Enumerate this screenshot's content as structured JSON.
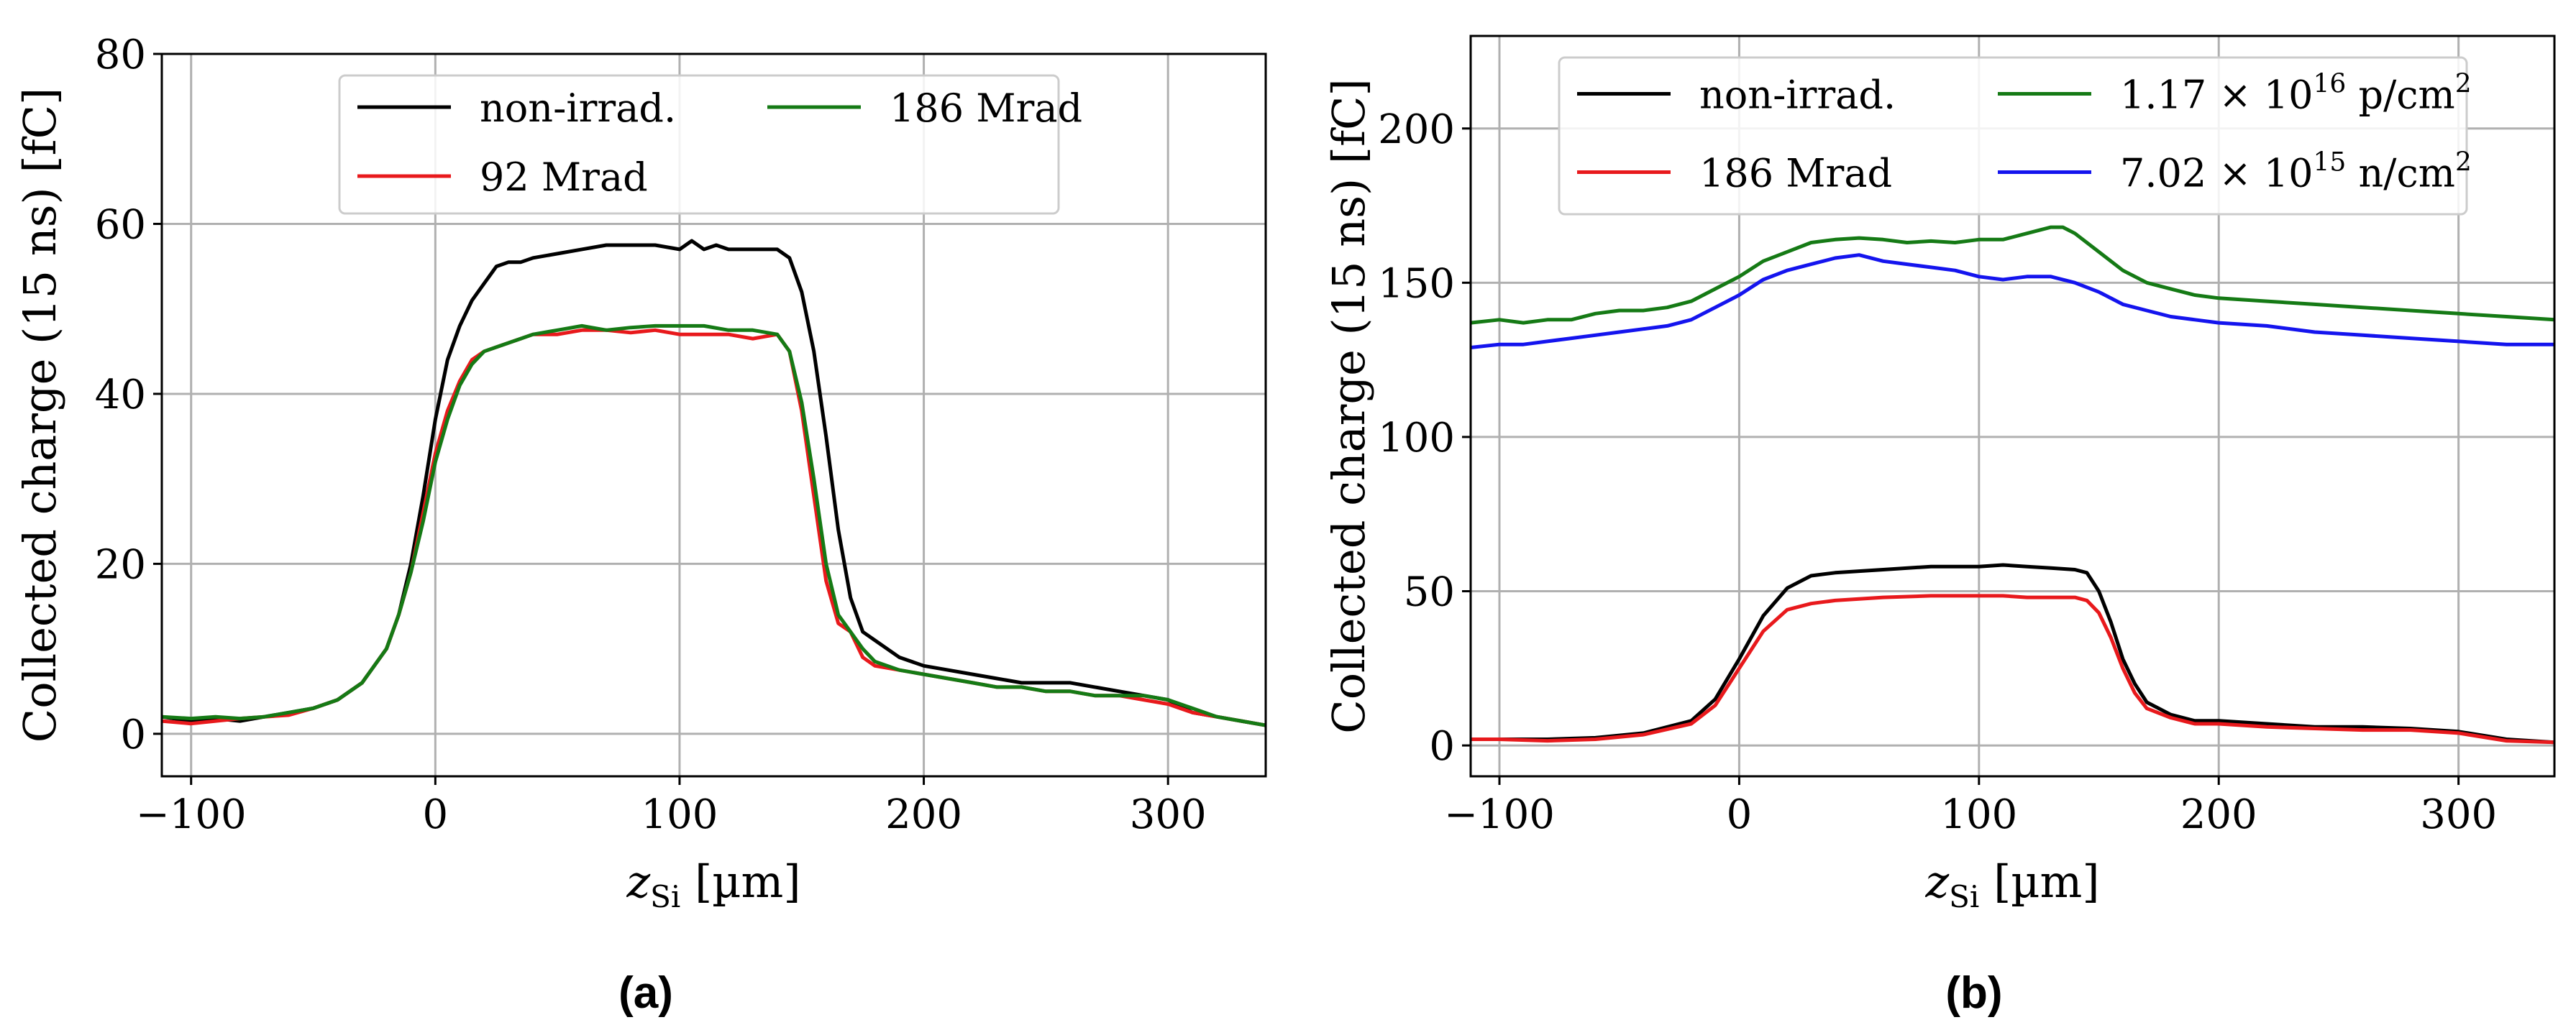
{
  "figure": {
    "captions": [
      "(a)",
      "(b)"
    ]
  },
  "chart_data": [
    {
      "type": "line",
      "caption": "(a)",
      "xlabel_main": "z",
      "xlabel_sub": "Si",
      "xlabel_unit": "[µm]",
      "ylabel": "Collected charge (15 ns) [fC]",
      "xlim": [
        -112,
        340
      ],
      "ylim": [
        -5,
        80
      ],
      "xticks": [
        -100,
        0,
        100,
        200,
        300
      ],
      "yticks": [
        0,
        20,
        40,
        60,
        80
      ],
      "grid": true,
      "legend_location": "top-center",
      "series": [
        {
          "name": "non-irrad.",
          "color": "#000000",
          "x": [
            -112,
            -100,
            -90,
            -80,
            -70,
            -60,
            -50,
            -40,
            -30,
            -20,
            -15,
            -10,
            -5,
            0,
            5,
            10,
            15,
            20,
            25,
            30,
            35,
            40,
            50,
            60,
            70,
            80,
            90,
            100,
            105,
            110,
            115,
            120,
            130,
            140,
            145,
            150,
            155,
            160,
            165,
            170,
            175,
            180,
            190,
            200,
            210,
            220,
            230,
            240,
            250,
            260,
            270,
            280,
            290,
            300,
            310,
            320,
            330,
            340
          ],
          "y": [
            2,
            1.5,
            1.8,
            1.5,
            2,
            2.5,
            3,
            4,
            6,
            10,
            14,
            20,
            28,
            37,
            44,
            48,
            51,
            53,
            55,
            55.5,
            55.5,
            56,
            56.5,
            57,
            57.5,
            57.5,
            57.5,
            57,
            58,
            57,
            57.5,
            57,
            57,
            57,
            56,
            52,
            45,
            35,
            24,
            16,
            12,
            11,
            9,
            8,
            7.5,
            7,
            6.5,
            6,
            6,
            6,
            5.5,
            5,
            4.5,
            4,
            2.5,
            2,
            1.5,
            1
          ]
        },
        {
          "name": "92 Mrad",
          "color": "#e8191c",
          "x": [
            -112,
            -100,
            -90,
            -80,
            -70,
            -60,
            -50,
            -40,
            -30,
            -20,
            -15,
            -10,
            -5,
            0,
            5,
            10,
            15,
            20,
            25,
            30,
            35,
            40,
            50,
            60,
            70,
            80,
            90,
            100,
            110,
            120,
            130,
            140,
            145,
            150,
            155,
            160,
            165,
            170,
            175,
            180,
            190,
            200,
            210,
            220,
            230,
            240,
            250,
            260,
            270,
            280,
            290,
            300,
            310,
            320,
            330,
            340
          ],
          "y": [
            1.5,
            1.2,
            1.5,
            1.8,
            2,
            2.2,
            3,
            4,
            6,
            10,
            14,
            19,
            26,
            33,
            38,
            41.5,
            44,
            45,
            45.5,
            46,
            46.5,
            47,
            47,
            47.5,
            47.5,
            47.2,
            47.5,
            47,
            47,
            47,
            46.5,
            47,
            45,
            38,
            28,
            18,
            13,
            12,
            9,
            8,
            7.5,
            7,
            6.5,
            6,
            5.5,
            5.5,
            5,
            5,
            4.5,
            4.5,
            4,
            3.5,
            2.5,
            2,
            1.5,
            1
          ]
        },
        {
          "name": "186 Mrad",
          "color": "#157a15",
          "x": [
            -112,
            -100,
            -90,
            -80,
            -70,
            -60,
            -50,
            -40,
            -30,
            -20,
            -15,
            -10,
            -5,
            0,
            5,
            10,
            15,
            20,
            25,
            30,
            35,
            40,
            50,
            60,
            70,
            80,
            90,
            100,
            110,
            120,
            130,
            140,
            145,
            150,
            155,
            160,
            165,
            170,
            175,
            180,
            190,
            200,
            210,
            220,
            230,
            240,
            250,
            260,
            270,
            280,
            290,
            300,
            310,
            320,
            330,
            340
          ],
          "y": [
            2,
            1.8,
            2,
            1.8,
            2,
            2.5,
            3,
            4,
            6,
            10,
            14,
            19,
            25,
            32,
            37,
            41,
            43.5,
            45,
            45.5,
            46,
            46.5,
            47,
            47.5,
            48,
            47.5,
            47.8,
            48,
            48,
            48,
            47.5,
            47.5,
            47,
            45,
            39,
            30,
            20,
            14,
            12,
            10,
            8.5,
            7.5,
            7,
            6.5,
            6,
            5.5,
            5.5,
            5,
            5,
            4.5,
            4.5,
            4.5,
            4,
            3,
            2,
            1.5,
            1
          ]
        }
      ]
    },
    {
      "type": "line",
      "caption": "(b)",
      "xlabel_main": "z",
      "xlabel_sub": "Si",
      "xlabel_unit": "[µm]",
      "ylabel": "Collected charge (15 ns) [fC]",
      "xlim": [
        -112,
        340
      ],
      "ylim": [
        -10,
        230
      ],
      "xticks": [
        -100,
        0,
        100,
        200,
        300
      ],
      "yticks": [
        0,
        50,
        100,
        150,
        200
      ],
      "grid": true,
      "legend_location": "top-center",
      "series": [
        {
          "name": "non-irrad.",
          "color": "#000000",
          "x": [
            -112,
            -100,
            -80,
            -60,
            -40,
            -20,
            -10,
            0,
            10,
            20,
            30,
            40,
            60,
            80,
            100,
            110,
            120,
            130,
            140,
            145,
            150,
            155,
            160,
            165,
            170,
            180,
            190,
            200,
            220,
            240,
            260,
            280,
            300,
            320,
            340
          ],
          "y": [
            2,
            2,
            2,
            2.5,
            4,
            8,
            15,
            28,
            42,
            51,
            55,
            56,
            57,
            58,
            58,
            58.5,
            58,
            57.5,
            57,
            56,
            50,
            40,
            28,
            20,
            14,
            10,
            8,
            8,
            7,
            6,
            6,
            5.5,
            4.5,
            2,
            1
          ]
        },
        {
          "name": "186 Mrad",
          "color": "#e8191c",
          "x": [
            -112,
            -100,
            -80,
            -60,
            -40,
            -20,
            -10,
            0,
            10,
            20,
            30,
            40,
            60,
            80,
            100,
            110,
            120,
            130,
            140,
            145,
            150,
            155,
            160,
            165,
            170,
            180,
            190,
            200,
            220,
            240,
            260,
            280,
            300,
            320,
            340
          ],
          "y": [
            2,
            2,
            1.5,
            2,
            3.5,
            7,
            13,
            25,
            37,
            44,
            46,
            47,
            48,
            48.5,
            48.5,
            48.5,
            48,
            48,
            48,
            47,
            43,
            35,
            25,
            17,
            12,
            9,
            7,
            7,
            6,
            5.5,
            5,
            5,
            4,
            1.5,
            1
          ]
        },
        {
          "name": "1.17 × 10",
          "sup": "16",
          "unit": " p/cm",
          "unit_sup": "2",
          "color": "#157a15",
          "x": [
            -112,
            -100,
            -90,
            -80,
            -70,
            -60,
            -50,
            -40,
            -30,
            -20,
            -10,
            0,
            10,
            20,
            30,
            40,
            50,
            60,
            70,
            80,
            90,
            100,
            110,
            120,
            130,
            135,
            140,
            150,
            160,
            170,
            180,
            190,
            200,
            220,
            240,
            260,
            280,
            300,
            320,
            340
          ],
          "y": [
            137,
            138,
            137,
            138,
            138,
            140,
            141,
            141,
            142,
            144,
            148,
            152,
            157,
            160,
            163,
            164,
            164.5,
            164,
            163,
            163.5,
            163,
            164,
            164,
            166,
            168,
            168,
            166,
            160,
            154,
            150,
            148,
            146,
            145,
            144,
            143,
            142,
            141,
            140,
            139,
            138
          ]
        },
        {
          "name": "7.02 × 10",
          "sup": "15",
          "unit": " n/cm",
          "unit_sup": "2",
          "color": "#1414ee",
          "x": [
            -112,
            -100,
            -90,
            -80,
            -70,
            -60,
            -50,
            -40,
            -30,
            -20,
            -10,
            0,
            10,
            20,
            30,
            40,
            50,
            60,
            70,
            80,
            90,
            100,
            110,
            120,
            130,
            140,
            150,
            160,
            170,
            180,
            190,
            200,
            220,
            240,
            260,
            280,
            300,
            320,
            340
          ],
          "y": [
            129,
            130,
            130,
            131,
            132,
            133,
            134,
            135,
            136,
            138,
            142,
            146,
            151,
            154,
            156,
            158,
            159,
            157,
            156,
            155,
            154,
            152,
            151,
            152,
            152,
            150,
            147,
            143,
            141,
            139,
            138,
            137,
            136,
            134,
            133,
            132,
            131,
            130,
            130
          ]
        }
      ]
    }
  ]
}
